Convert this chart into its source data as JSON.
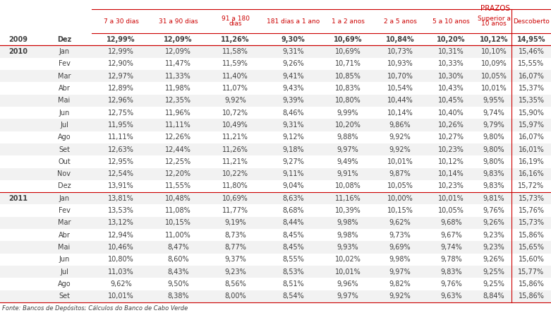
{
  "col_headers": [
    "7 a 30 dias",
    "31 a 90 dias",
    "91 a 180\ndias",
    "181 dias a 1 ano",
    "1 a 2 anos",
    "2 a 5 anos",
    "5 a 10 anos",
    "Superior a\n10 anos",
    "Descoberto"
  ],
  "rows": [
    {
      "year": "2009",
      "month": "Dez",
      "values": [
        "12,99%",
        "12,09%",
        "11,26%",
        "9,30%",
        "10,69%",
        "10,84%",
        "10,20%",
        "10,12%",
        "14,95%"
      ],
      "year_row": true,
      "bold": true
    },
    {
      "year": "2010",
      "month": "Jan",
      "values": [
        "12,99%",
        "12,09%",
        "11,58%",
        "9,31%",
        "10,69%",
        "10,73%",
        "10,31%",
        "10,10%",
        "15,46%"
      ],
      "year_row": true,
      "bold": false
    },
    {
      "year": "",
      "month": "Fev",
      "values": [
        "12,90%",
        "11,47%",
        "11,59%",
        "9,26%",
        "10,71%",
        "10,93%",
        "10,33%",
        "10,09%",
        "15,55%"
      ],
      "year_row": false,
      "bold": false
    },
    {
      "year": "",
      "month": "Mar",
      "values": [
        "12,97%",
        "11,33%",
        "11,40%",
        "9,41%",
        "10,85%",
        "10,70%",
        "10,30%",
        "10,05%",
        "16,07%"
      ],
      "year_row": false,
      "bold": false
    },
    {
      "year": "",
      "month": "Abr",
      "values": [
        "12,89%",
        "11,98%",
        "11,07%",
        "9,43%",
        "10,83%",
        "10,54%",
        "10,43%",
        "10,01%",
        "15,37%"
      ],
      "year_row": false,
      "bold": false
    },
    {
      "year": "",
      "month": "Mai",
      "values": [
        "12,96%",
        "12,35%",
        "9,92%",
        "9,39%",
        "10,80%",
        "10,44%",
        "10,45%",
        "9,95%",
        "15,35%"
      ],
      "year_row": false,
      "bold": false
    },
    {
      "year": "",
      "month": "Jun",
      "values": [
        "12,75%",
        "11,96%",
        "10,72%",
        "8,46%",
        "9,99%",
        "10,14%",
        "10,40%",
        "9,74%",
        "15,90%"
      ],
      "year_row": false,
      "bold": false
    },
    {
      "year": "",
      "month": "Jul",
      "values": [
        "11,95%",
        "11,11%",
        "10,49%",
        "9,31%",
        "10,20%",
        "9,86%",
        "10,26%",
        "9,79%",
        "15,97%"
      ],
      "year_row": false,
      "bold": false
    },
    {
      "year": "",
      "month": "Ago",
      "values": [
        "11,11%",
        "12,26%",
        "11,21%",
        "9,12%",
        "9,88%",
        "9,92%",
        "10,27%",
        "9,80%",
        "16,07%"
      ],
      "year_row": false,
      "bold": false
    },
    {
      "year": "",
      "month": "Set",
      "values": [
        "12,63%",
        "12,44%",
        "11,26%",
        "9,18%",
        "9,97%",
        "9,92%",
        "10,23%",
        "9,80%",
        "16,01%"
      ],
      "year_row": false,
      "bold": false
    },
    {
      "year": "",
      "month": "Out",
      "values": [
        "12,95%",
        "12,25%",
        "11,21%",
        "9,27%",
        "9,49%",
        "10,01%",
        "10,12%",
        "9,80%",
        "16,19%"
      ],
      "year_row": false,
      "bold": false
    },
    {
      "year": "",
      "month": "Nov",
      "values": [
        "12,54%",
        "12,20%",
        "10,22%",
        "9,11%",
        "9,91%",
        "9,87%",
        "10,14%",
        "9,83%",
        "16,16%"
      ],
      "year_row": false,
      "bold": false
    },
    {
      "year": "",
      "month": "Dez",
      "values": [
        "13,91%",
        "11,55%",
        "11,80%",
        "9,04%",
        "10,08%",
        "10,05%",
        "10,23%",
        "9,83%",
        "15,72%"
      ],
      "year_row": false,
      "bold": false
    },
    {
      "year": "2011",
      "month": "Jan",
      "values": [
        "13,81%",
        "10,48%",
        "10,69%",
        "8,63%",
        "11,16%",
        "10,00%",
        "10,01%",
        "9,81%",
        "15,73%"
      ],
      "year_row": true,
      "bold": false
    },
    {
      "year": "",
      "month": "Fev",
      "values": [
        "13,53%",
        "11,08%",
        "11,77%",
        "8,68%",
        "10,39%",
        "10,15%",
        "10,05%",
        "9,76%",
        "15,76%"
      ],
      "year_row": false,
      "bold": false
    },
    {
      "year": "",
      "month": "Mar",
      "values": [
        "13,12%",
        "10,15%",
        "9,19%",
        "8,44%",
        "9,98%",
        "9,62%",
        "9,68%",
        "9,26%",
        "15,73%"
      ],
      "year_row": false,
      "bold": false
    },
    {
      "year": "",
      "month": "Abr",
      "values": [
        "12,94%",
        "11,00%",
        "8,73%",
        "8,45%",
        "9,98%",
        "9,73%",
        "9,67%",
        "9,23%",
        "15,86%"
      ],
      "year_row": false,
      "bold": false
    },
    {
      "year": "",
      "month": "Mai",
      "values": [
        "10,46%",
        "8,47%",
        "8,77%",
        "8,45%",
        "9,93%",
        "9,69%",
        "9,74%",
        "9,23%",
        "15,65%"
      ],
      "year_row": false,
      "bold": false
    },
    {
      "year": "",
      "month": "Jun",
      "values": [
        "10,80%",
        "8,60%",
        "9,37%",
        "8,55%",
        "10,02%",
        "9,98%",
        "9,78%",
        "9,26%",
        "15,60%"
      ],
      "year_row": false,
      "bold": false
    },
    {
      "year": "",
      "month": "Jul",
      "values": [
        "11,03%",
        "8,43%",
        "9,23%",
        "8,53%",
        "10,01%",
        "9,97%",
        "9,83%",
        "9,25%",
        "15,77%"
      ],
      "year_row": false,
      "bold": false
    },
    {
      "year": "",
      "month": "Ago",
      "values": [
        "9,62%",
        "9,50%",
        "8,56%",
        "8,51%",
        "9,96%",
        "9,82%",
        "9,76%",
        "9,25%",
        "15,86%"
      ],
      "year_row": false,
      "bold": false
    },
    {
      "year": "",
      "month": "Set",
      "values": [
        "10,01%",
        "8,38%",
        "8,00%",
        "8,54%",
        "9,97%",
        "9,92%",
        "9,63%",
        "8,84%",
        "15,86%"
      ],
      "year_row": false,
      "bold": false
    }
  ],
  "footer": "Fonte: Bancos de Depósitos; Cálculos do Banco de Cabo Verde",
  "red_color": "#CC0000",
  "text_color": "#404040",
  "bg_white": "#FFFFFF",
  "bg_stripe": "#F2F2F2",
  "bold_row_bg": "#FFFFFF"
}
